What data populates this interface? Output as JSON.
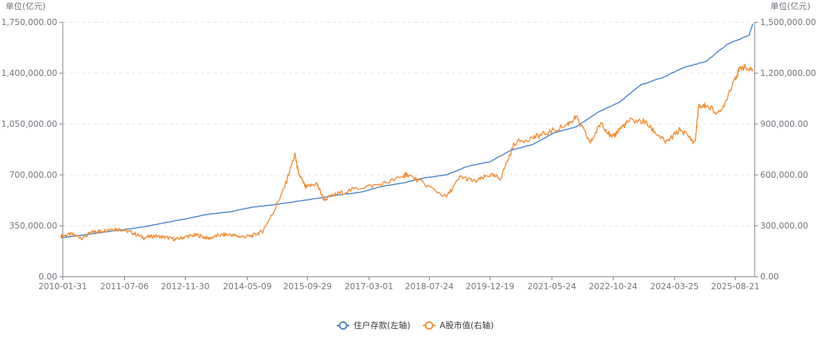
{
  "chart_data": {
    "type": "line",
    "y_left_unit": "单位(亿元)",
    "y_right_unit": "单位(亿元)",
    "x_tick_labels": [
      "2010-01-31",
      "2011-07-06",
      "2012-11-30",
      "2014-05-09",
      "2015-09-29",
      "2017-03-01",
      "2018-07-24",
      "2019-12-19",
      "2021-05-24",
      "2022-10-24",
      "2024-03-25",
      "2025-08-21"
    ],
    "x_range": [
      "2010-01-31",
      "2026-01-31"
    ],
    "y_left": {
      "range": [
        0,
        1750000
      ],
      "ticks": [
        "0.00",
        "350,000.00",
        "700,000.00",
        "1,050,000.00",
        "1,400,000.00",
        "1,750,000.00"
      ]
    },
    "y_right": {
      "range": [
        0,
        1500000
      ],
      "ticks": [
        "0.00",
        "300,000.00",
        "600,000.00",
        "900,000.00",
        "1,200,000.00",
        "1,500,000.00"
      ]
    },
    "grid": "horizontal dashed",
    "legend_position": "bottom-center",
    "series": [
      {
        "name": "住户存款(左轴)",
        "axis": "left",
        "color": "#3f7ec8",
        "points": [
          [
            "2010-01",
            268000
          ],
          [
            "2010-06",
            282000
          ],
          [
            "2010-12",
            303000
          ],
          [
            "2011-06",
            322000
          ],
          [
            "2011-12",
            343000
          ],
          [
            "2012-06",
            372000
          ],
          [
            "2012-12",
            400000
          ],
          [
            "2013-06",
            430000
          ],
          [
            "2013-12",
            446000
          ],
          [
            "2014-06",
            478000
          ],
          [
            "2014-12",
            494000
          ],
          [
            "2015-06",
            516000
          ],
          [
            "2015-12",
            538000
          ],
          [
            "2016-06",
            562000
          ],
          [
            "2016-12",
            580000
          ],
          [
            "2017-06",
            620000
          ],
          [
            "2017-12",
            645000
          ],
          [
            "2018-06",
            680000
          ],
          [
            "2018-12",
            700000
          ],
          [
            "2019-06",
            760000
          ],
          [
            "2019-12",
            790000
          ],
          [
            "2020-06",
            870000
          ],
          [
            "2020-12",
            910000
          ],
          [
            "2021-06",
            990000
          ],
          [
            "2021-12",
            1030000
          ],
          [
            "2022-06",
            1130000
          ],
          [
            "2022-12",
            1200000
          ],
          [
            "2023-06",
            1320000
          ],
          [
            "2023-12",
            1370000
          ],
          [
            "2024-06",
            1440000
          ],
          [
            "2024-12",
            1480000
          ],
          [
            "2025-06",
            1600000
          ],
          [
            "2025-12",
            1660000
          ],
          [
            "2026-01",
            1740000
          ]
        ]
      },
      {
        "name": "A股市值(右轴)",
        "axis": "right",
        "color": "#f28a2e",
        "points": [
          [
            "2010-01",
            240000
          ],
          [
            "2010-04",
            250000
          ],
          [
            "2010-07",
            228000
          ],
          [
            "2010-10",
            265000
          ],
          [
            "2010-12",
            268000
          ],
          [
            "2011-03",
            282000
          ],
          [
            "2011-06",
            278000
          ],
          [
            "2011-09",
            258000
          ],
          [
            "2011-12",
            230000
          ],
          [
            "2012-03",
            240000
          ],
          [
            "2012-06",
            232000
          ],
          [
            "2012-09",
            220000
          ],
          [
            "2012-12",
            238000
          ],
          [
            "2013-03",
            245000
          ],
          [
            "2013-06",
            225000
          ],
          [
            "2013-09",
            245000
          ],
          [
            "2013-12",
            248000
          ],
          [
            "2014-03",
            235000
          ],
          [
            "2014-06",
            240000
          ],
          [
            "2014-09",
            268000
          ],
          [
            "2014-12",
            380000
          ],
          [
            "2015-03",
            520000
          ],
          [
            "2015-06",
            720000
          ],
          [
            "2015-07",
            610000
          ],
          [
            "2015-09",
            525000
          ],
          [
            "2015-12",
            550000
          ],
          [
            "2016-02",
            455000
          ],
          [
            "2016-06",
            490000
          ],
          [
            "2016-12",
            525000
          ],
          [
            "2017-06",
            545000
          ],
          [
            "2017-12",
            590000
          ],
          [
            "2018-01",
            605000
          ],
          [
            "2018-06",
            545000
          ],
          [
            "2018-12",
            470000
          ],
          [
            "2019-04",
            590000
          ],
          [
            "2019-08",
            560000
          ],
          [
            "2019-12",
            600000
          ],
          [
            "2020-03",
            580000
          ],
          [
            "2020-07",
            790000
          ],
          [
            "2020-12",
            820000
          ],
          [
            "2021-03",
            840000
          ],
          [
            "2021-09",
            890000
          ],
          [
            "2021-12",
            940000
          ],
          [
            "2022-04",
            790000
          ],
          [
            "2022-07",
            910000
          ],
          [
            "2022-10",
            815000
          ],
          [
            "2022-12",
            870000
          ],
          [
            "2023-03",
            920000
          ],
          [
            "2023-07",
            915000
          ],
          [
            "2023-10",
            850000
          ],
          [
            "2024-01",
            790000
          ],
          [
            "2024-05",
            870000
          ],
          [
            "2024-09",
            790000
          ],
          [
            "2024-10",
            1000000
          ],
          [
            "2024-12",
            1010000
          ],
          [
            "2025-04",
            960000
          ],
          [
            "2025-08",
            1170000
          ],
          [
            "2025-10",
            1240000
          ],
          [
            "2026-01",
            1210000
          ]
        ]
      }
    ]
  }
}
